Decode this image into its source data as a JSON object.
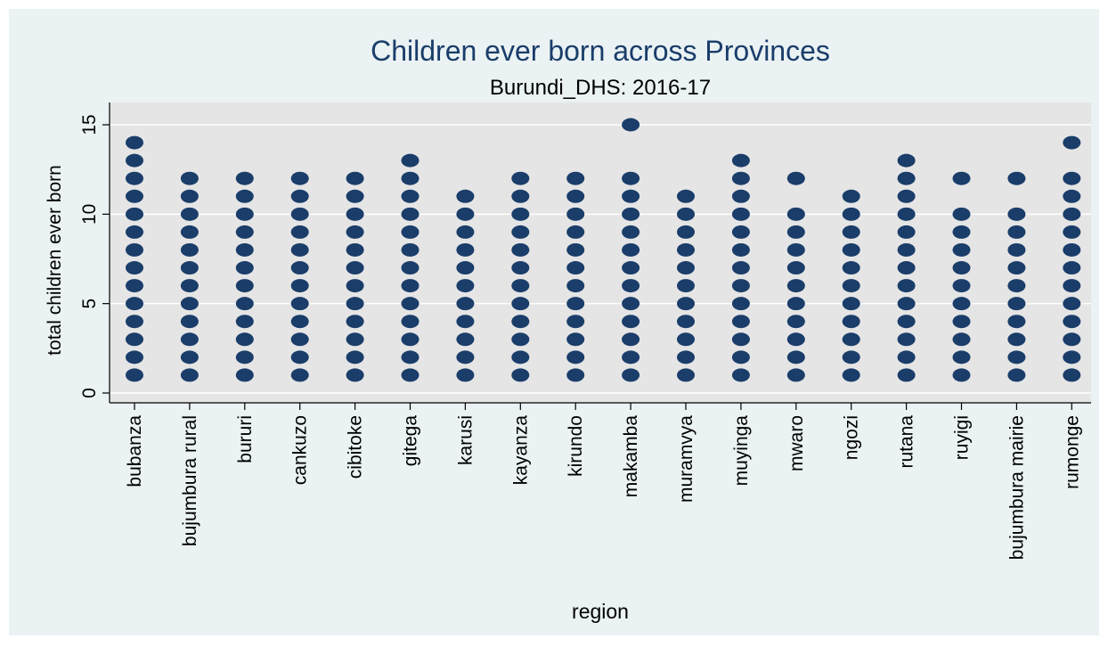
{
  "chart_data": {
    "type": "scatter",
    "title": "Children ever born across Provinces",
    "subtitle": "Burundi_DHS: 2016-17",
    "xlabel": "region",
    "ylabel": "total children ever born",
    "ylim": [
      0,
      15
    ],
    "yticks": [
      0,
      5,
      10,
      15
    ],
    "grid": true,
    "marker_color": "#1a3d6a",
    "plot_background": "#e5e5e5",
    "categories": [
      "bubanza",
      "bujumbura rural",
      "bururi",
      "cankuzo",
      "cibitoke",
      "gitega",
      "karusi",
      "kayanza",
      "kirundo",
      "makamba",
      "muramvya",
      "muyinga",
      "mwaro",
      "ngozi",
      "rutana",
      "ruyigi",
      "bujumbura mairie",
      "rumonge"
    ],
    "series": [
      {
        "values": [
          [
            1,
            2,
            3,
            4,
            5,
            6,
            7,
            8,
            9,
            10,
            11,
            12,
            13,
            14
          ],
          [
            1,
            2,
            3,
            4,
            5,
            6,
            7,
            8,
            9,
            10,
            11,
            12
          ],
          [
            1,
            2,
            3,
            4,
            5,
            6,
            7,
            8,
            9,
            10,
            11,
            12
          ],
          [
            1,
            2,
            3,
            4,
            5,
            6,
            7,
            8,
            9,
            10,
            11,
            12
          ],
          [
            1,
            2,
            3,
            4,
            5,
            6,
            7,
            8,
            9,
            10,
            11,
            12
          ],
          [
            1,
            2,
            3,
            4,
            5,
            6,
            7,
            8,
            9,
            10,
            11,
            12,
            13
          ],
          [
            1,
            2,
            3,
            4,
            5,
            6,
            7,
            8,
            9,
            10,
            11
          ],
          [
            1,
            2,
            3,
            4,
            5,
            6,
            7,
            8,
            9,
            10,
            11,
            12
          ],
          [
            1,
            2,
            3,
            4,
            5,
            6,
            7,
            8,
            9,
            10,
            11,
            12
          ],
          [
            1,
            2,
            3,
            4,
            5,
            6,
            7,
            8,
            9,
            10,
            11,
            12,
            15
          ],
          [
            1,
            2,
            3,
            4,
            5,
            6,
            7,
            8,
            9,
            10,
            11
          ],
          [
            1,
            2,
            3,
            4,
            5,
            6,
            7,
            8,
            9,
            10,
            11,
            12,
            13
          ],
          [
            1,
            2,
            3,
            4,
            5,
            6,
            7,
            8,
            9,
            10,
            12
          ],
          [
            1,
            2,
            3,
            4,
            5,
            6,
            7,
            8,
            9,
            10,
            11
          ],
          [
            1,
            2,
            3,
            4,
            5,
            6,
            7,
            8,
            9,
            10,
            11,
            12,
            13
          ],
          [
            1,
            2,
            3,
            4,
            5,
            6,
            7,
            8,
            9,
            10,
            12
          ],
          [
            1,
            2,
            3,
            4,
            5,
            6,
            7,
            8,
            9,
            10,
            12
          ],
          [
            1,
            2,
            3,
            4,
            5,
            6,
            7,
            8,
            9,
            10,
            11,
            12,
            14
          ]
        ]
      }
    ]
  }
}
